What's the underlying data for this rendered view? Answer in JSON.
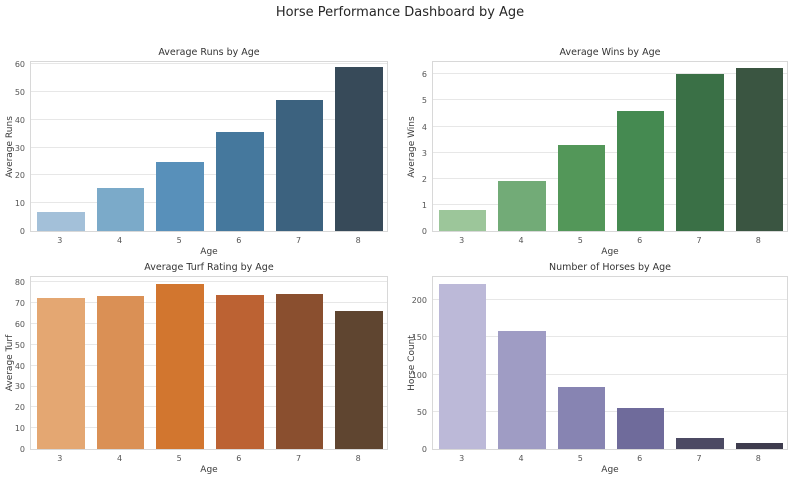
{
  "page": {
    "title": "Horse Performance Dashboard by Age",
    "colors": {
      "background": "#ffffff",
      "grid": "#e7e7e7",
      "plot_border": "#d8d8d8",
      "main_title_text": "#262626",
      "chart_title_text": "#333333",
      "tick_text": "#555555",
      "axis_label_text": "#3a3a3a"
    }
  },
  "chart_data": [
    {
      "type": "bar",
      "title": "Average Runs by Age",
      "xlabel": "Age",
      "ylabel": "Average Runs",
      "categories": [
        "3",
        "4",
        "5",
        "6",
        "7",
        "8"
      ],
      "values": [
        7,
        15.5,
        25,
        35.5,
        47,
        59
      ],
      "yticks": [
        0,
        10,
        20,
        30,
        40,
        50,
        60
      ],
      "ylim": [
        0,
        61.5
      ],
      "grid": true,
      "legend_position": "none",
      "bar_colors": [
        "#a3c0d9",
        "#7baac9",
        "#5890ba",
        "#45789d",
        "#3c627f",
        "#374a59"
      ]
    },
    {
      "type": "bar",
      "title": "Average Wins by Age",
      "xlabel": "Age",
      "ylabel": "Average Wins",
      "categories": [
        "3",
        "4",
        "5",
        "6",
        "7",
        "8"
      ],
      "values": [
        0.8,
        1.9,
        3.3,
        4.6,
        6.0,
        6.25
      ],
      "yticks": [
        0,
        1,
        2,
        3,
        4,
        5,
        6
      ],
      "ylim": [
        0,
        6.55
      ],
      "grid": true,
      "legend_position": "none",
      "bar_colors": [
        "#9cc69a",
        "#72ab77",
        "#539759",
        "#458a51",
        "#3a7046",
        "#3a5541"
      ]
    },
    {
      "type": "bar",
      "title": "Average Turf Rating by Age",
      "xlabel": "Age",
      "ylabel": "Average Turf",
      "categories": [
        "3",
        "4",
        "5",
        "6",
        "7",
        "8"
      ],
      "values": [
        72.5,
        73.5,
        79,
        74,
        74.5,
        66
      ],
      "yticks": [
        0,
        10,
        20,
        30,
        40,
        50,
        60,
        70,
        80
      ],
      "ylim": [
        0,
        83.5
      ],
      "grid": true,
      "legend_position": "none",
      "bar_colors": [
        "#e4a772",
        "#da9055",
        "#d2762f",
        "#bc6233",
        "#8a4f2f",
        "#5f4530"
      ]
    },
    {
      "type": "bar",
      "title": "Number of Horses by Age",
      "xlabel": "Age",
      "ylabel": "Horse Count",
      "categories": [
        "3",
        "4",
        "5",
        "6",
        "7",
        "8"
      ],
      "values": [
        222,
        159,
        84,
        55,
        15,
        8
      ],
      "yticks": [
        0,
        50,
        100,
        150,
        200
      ],
      "ylim": [
        0,
        234
      ],
      "grid": true,
      "legend_position": "none",
      "bar_colors": [
        "#bcb9d8",
        "#9f9cc4",
        "#8784b2",
        "#6f6b9b",
        "#4c4a63",
        "#3e3c4e"
      ]
    }
  ]
}
